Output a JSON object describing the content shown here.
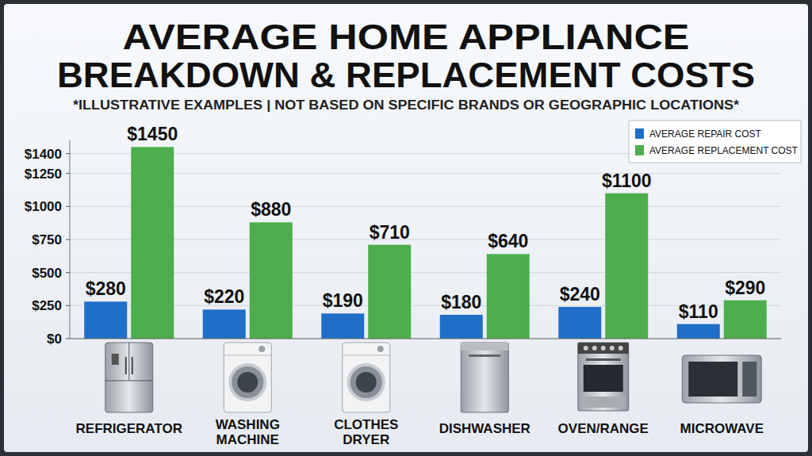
{
  "chart_data": {
    "type": "bar",
    "title": "AVERAGE HOME APPLIANCE\nBREAKDOWN & REPLACEMENT COSTS",
    "subtitle": "*ILLUSTRATIVE EXAMPLES | NOT BASED ON SPECIFIC BRANDS OR GEOGRAPHIC LOCATIONS*",
    "categories": [
      "REFRIGERATOR",
      "WASHING\nMACHINE",
      "CLOTHES\nDRYER",
      "DISHWASHER",
      "OVEN/RANGE",
      "MICROWAVE"
    ],
    "series": [
      {
        "name": "AVERAGE REPAIR COST",
        "color": "#1f6fc9",
        "values": [
          280,
          220,
          190,
          180,
          240,
          110
        ],
        "value_labels": [
          "$280",
          "$220",
          "$190",
          "$180",
          "$240",
          "$110"
        ]
      },
      {
        "name": "AVERAGE REPLACEMENT COST",
        "color": "#4cae4c",
        "values": [
          1450,
          880,
          710,
          640,
          1100,
          290
        ],
        "value_labels": [
          "$1450",
          "$880",
          "$710",
          "$640",
          "$1100",
          "$290"
        ]
      }
    ],
    "ylim": [
      0,
      1500
    ],
    "yticks": [
      {
        "value": 0,
        "label": "$0"
      },
      {
        "value": 250,
        "label": "$250"
      },
      {
        "value": 500,
        "label": "$500"
      },
      {
        "value": 750,
        "label": "$750"
      },
      {
        "value": 1000,
        "label": "$1000"
      },
      {
        "value": 1250,
        "label": "$1250"
      },
      {
        "value": 1400,
        "label": "$1400"
      }
    ],
    "grid": true,
    "legend": "top-right",
    "data_labels": true
  }
}
